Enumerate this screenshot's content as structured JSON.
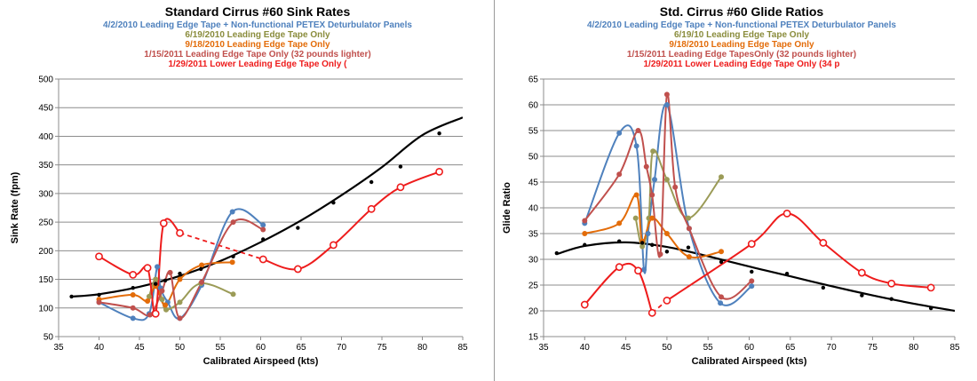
{
  "chart_data": [
    {
      "type": "line",
      "title": "Standard Cirrus #60 Sink Rates",
      "subtitles": [
        {
          "text": "4/2/2010 Leading Edge Tape + Non-functional PETEX Deturbulator Panels",
          "color": "#4f81bd"
        },
        {
          "text": "6/19/2010 Leading Edge Tape Only",
          "color": "#8a8c3c"
        },
        {
          "text": "9/18/2010 Leading Edge Tape Only",
          "color": "#e36c09"
        },
        {
          "text": "1/15/2011 Leading Edge Tape Only (32 pounds lighter)",
          "color": "#c0504d"
        },
        {
          "text": "1/29/2011 Lower Leading Edge Tape Only (",
          "color": "#ee1c1c"
        }
      ],
      "xlabel": "Calibrated Airspeed  (kts)",
      "ylabel": "Sink Rate (fpm)",
      "xlim": [
        35,
        85
      ],
      "ylim": [
        50,
        500
      ],
      "xticks": [
        35,
        40,
        45,
        50,
        55,
        60,
        65,
        70,
        75,
        80,
        85
      ],
      "yticks": [
        50,
        100,
        150,
        200,
        250,
        300,
        350,
        400,
        450,
        500
      ],
      "grid": "horizontal",
      "series": [
        {
          "color": "#4f81bd",
          "marker": "dot",
          "x": [
            40,
            44.2,
            46.2,
            47.2,
            47.6,
            48.5,
            50.0,
            52.7,
            56.5,
            60.3
          ],
          "y": [
            110,
            82,
            90,
            172,
            135,
            110,
            82,
            140,
            268,
            245
          ]
        },
        {
          "color": "#9b9b57",
          "marker": "dot",
          "x": [
            46.2,
            47.0,
            47.8,
            48.3,
            50.0,
            52.6,
            56.6
          ],
          "y": [
            120,
            150,
            115,
            97,
            110,
            143,
            124
          ]
        },
        {
          "color": "#e36c09",
          "marker": "dot",
          "x": [
            40,
            44.2,
            46.0,
            47.0,
            48.2,
            50.0,
            52.7,
            56.5
          ],
          "y": [
            115,
            123,
            112,
            138,
            105,
            150,
            175,
            180
          ]
        },
        {
          "color": "#c0504d",
          "marker": "dot",
          "x": [
            40,
            44.2,
            46.3,
            47.8,
            48.8,
            50.0,
            52.7,
            56.6,
            60.3
          ],
          "y": [
            110,
            100,
            88,
            130,
            162,
            82,
            145,
            250,
            237
          ]
        },
        {
          "color": "#ee1c1c",
          "marker": "open-circle",
          "x": [
            40,
            44.2,
            46.0,
            47.0,
            48.0,
            50.0,
            60.3,
            64.6,
            69.0,
            73.7,
            77.3,
            82.1
          ],
          "y": [
            190,
            158,
            170,
            90,
            248,
            231,
            185,
            168,
            210,
            273,
            311,
            338
          ],
          "dash_from": 5
        },
        {
          "color": "#000000",
          "marker": "small-dot",
          "fit": "poly",
          "x": [
            36.6,
            40,
            44.2,
            47.0,
            48.2,
            50.0,
            52.6,
            56.6,
            60.3,
            64.6,
            69.0,
            73.7,
            77.3,
            82.1
          ],
          "y": [
            120,
            123,
            135,
            142,
            148,
            160,
            168,
            190,
            220,
            240,
            284,
            320,
            347,
            405
          ]
        }
      ],
      "fit_curve": {
        "x": [
          36.6,
          40,
          45,
          50,
          55,
          60,
          65,
          70,
          75,
          80,
          85
        ],
        "y": [
          120,
          124,
          137,
          156,
          182,
          215,
          253,
          297,
          346,
          402,
          433
        ]
      }
    },
    {
      "type": "line",
      "title": "Std. Cirrus #60 Glide Ratios",
      "subtitles": [
        {
          "text": "4/2/2010 Leading Edge Tape + Non-functional PETEX Deturbulator Panels",
          "color": "#4f81bd"
        },
        {
          "text": "6/19/10 Leading Edge Tape Only",
          "color": "#8a8c3c"
        },
        {
          "text": "9/18/2010 Leading Edge Tape Only",
          "color": "#e36c09"
        },
        {
          "text": "1/15/2011 Leading Edge TapesOnly (32 pounds lighter)",
          "color": "#c0504d"
        },
        {
          "text": "1/29/2011 Lower Leading Edge Tape Only (34 p",
          "color": "#ee1c1c"
        }
      ],
      "xlabel": "Calibrated Airspeed  (kts)",
      "ylabel": "Glide Ratio",
      "xlim": [
        35,
        85
      ],
      "ylim": [
        15,
        65
      ],
      "xticks": [
        35,
        40,
        45,
        50,
        55,
        60,
        65,
        70,
        75,
        80,
        85
      ],
      "yticks": [
        15,
        20,
        25,
        30,
        35,
        40,
        45,
        50,
        55,
        60,
        65
      ],
      "grid": "horizontal",
      "series": [
        {
          "color": "#4f81bd",
          "marker": "dot",
          "x": [
            40,
            44.2,
            46.3,
            47.2,
            47.7,
            48.5,
            50.0,
            52.7,
            56.5,
            60.3
          ],
          "y": [
            37,
            54.5,
            52,
            28,
            35,
            45.5,
            60,
            36,
            21.5,
            24.8
          ]
        },
        {
          "color": "#9b9b57",
          "marker": "dot",
          "x": [
            46.2,
            47.0,
            47.8,
            48.3,
            50.0,
            52.6,
            56.6
          ],
          "y": [
            38,
            32.5,
            38,
            51,
            45.5,
            38,
            46
          ]
        },
        {
          "color": "#e36c09",
          "marker": "dot",
          "x": [
            40,
            44.2,
            46.3,
            47.0,
            48.2,
            50.0,
            52.7,
            56.6
          ],
          "y": [
            35,
            37,
            42.5,
            33.5,
            38,
            35,
            30.5,
            31.5
          ]
        },
        {
          "color": "#c0504d",
          "marker": "dot",
          "x": [
            40,
            44.2,
            46.5,
            47.5,
            48.2,
            49.2,
            50.0,
            51.0,
            52.7,
            56.6,
            60.3
          ],
          "y": [
            37.5,
            46.5,
            55,
            48,
            42.5,
            31,
            62,
            44,
            36,
            22.7,
            25.8
          ]
        },
        {
          "color": "#ee1c1c",
          "marker": "open-circle",
          "x": [
            40,
            44.2,
            46.5,
            48.2,
            50.0,
            60.3,
            64.6,
            69.0,
            73.7,
            77.3,
            82.1
          ],
          "y": [
            21.2,
            28.5,
            27.8,
            19.6,
            22,
            33,
            38.9,
            33.2,
            27.4,
            25.3,
            24.5
          ],
          "dash_from": 3
        },
        {
          "color": "#000000",
          "marker": "small-dot",
          "fit": "poly",
          "x": [
            36.6,
            40,
            44.2,
            47.0,
            48.2,
            50.0,
            52.6,
            56.6,
            60.3,
            64.6,
            69.0,
            73.7,
            77.3,
            82.1
          ],
          "y": [
            31.2,
            32.8,
            33.5,
            33.2,
            32.8,
            31.5,
            32.3,
            29.5,
            27.6,
            27.2,
            24.5,
            23,
            22.3,
            20.5
          ]
        }
      ],
      "fit_curve": {
        "x": [
          36.6,
          40,
          45,
          50,
          55,
          60,
          65,
          70,
          75,
          80,
          85
        ],
        "y": [
          31.0,
          32.6,
          33.3,
          32.4,
          30.6,
          28.6,
          26.7,
          24.8,
          23.0,
          21.4,
          20.0
        ]
      }
    }
  ]
}
